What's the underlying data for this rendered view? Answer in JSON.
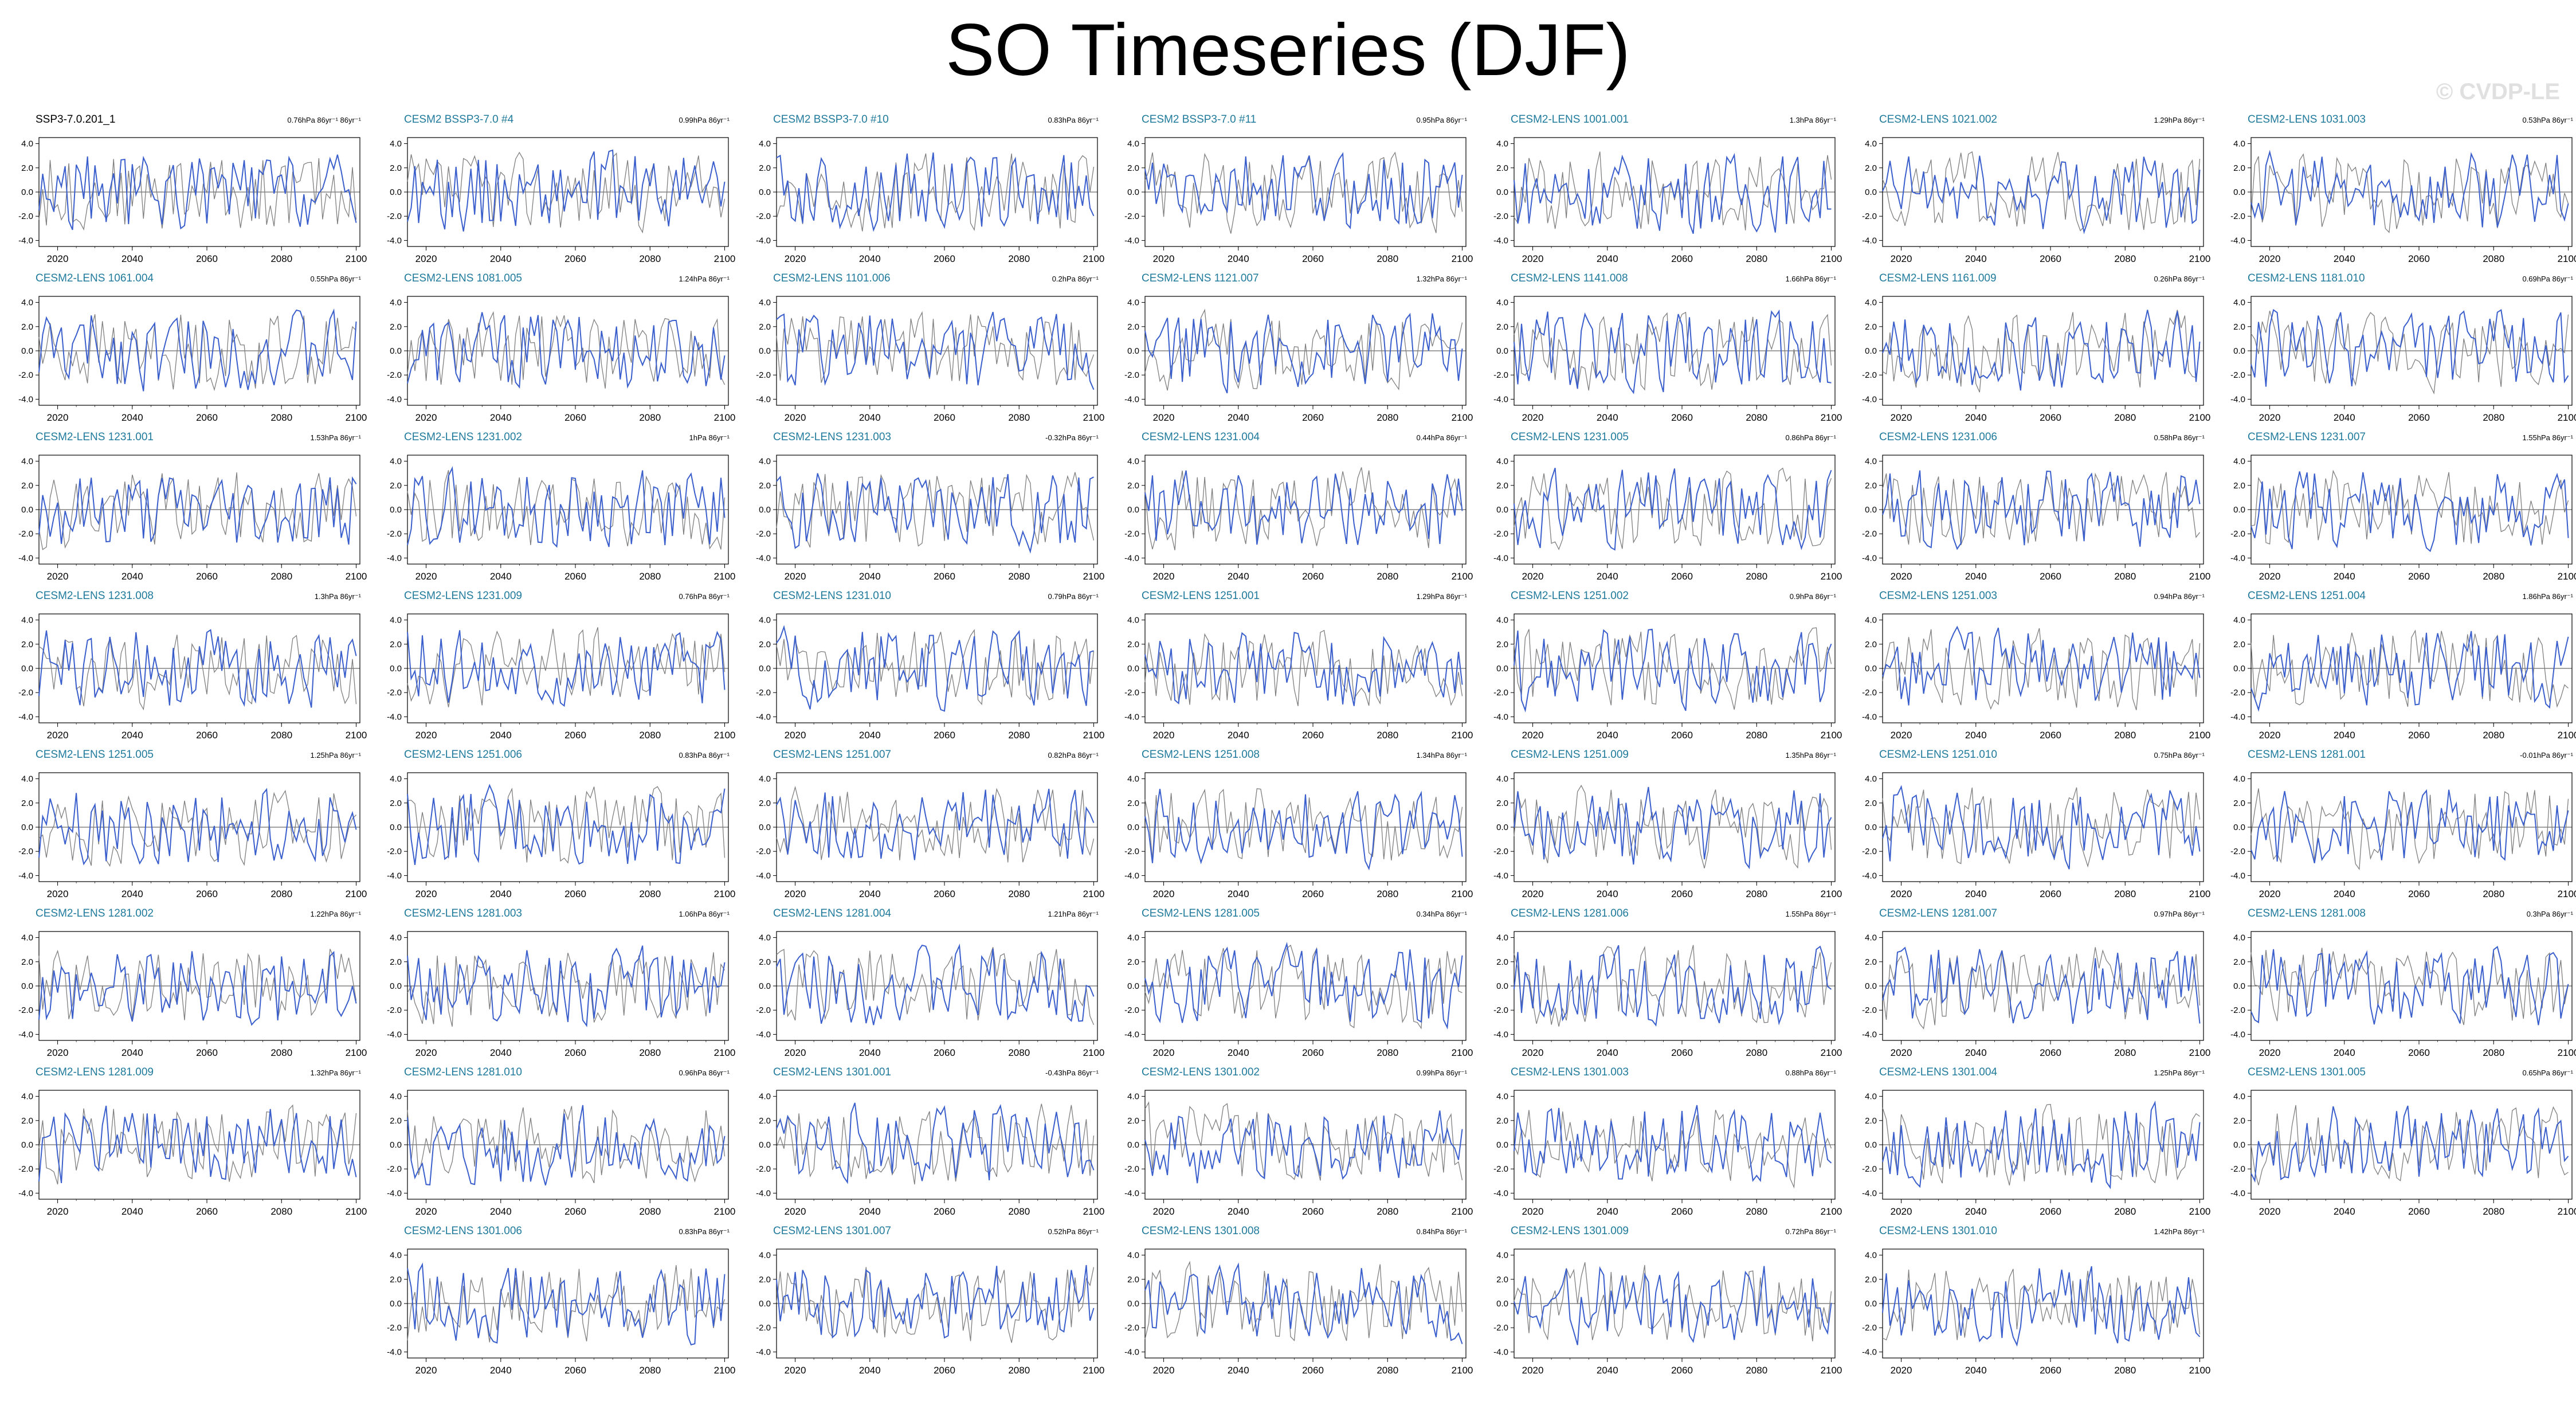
{
  "title": "SO Timeseries (DJF)",
  "watermark": "© CVDP-LE",
  "colors": {
    "model_line": "#3a5fcd",
    "obs_line": "#7f7f7f",
    "title_text": "#1f7a9c",
    "zero_line": "#000000"
  },
  "chart_data": {
    "type": "line",
    "x_ticks": [
      2020,
      2040,
      2060,
      2080,
      2100
    ],
    "y_ticks": [
      "4.0",
      "2.0",
      "0.0",
      "-2.0",
      "-4.0"
    ],
    "xlim": [
      2015,
      2101
    ],
    "ylim": [
      -4.5,
      4.5
    ],
    "series_colors": [
      "blue",
      "gray"
    ],
    "panels": [
      {
        "title": "SSP3-7.0.201_1",
        "trend": "0.76hPa 86yr⁻¹ 86yr⁻¹",
        "seed": 11
      },
      {
        "title": "CESM2 BSSP3-7.0 #4",
        "trend": "0.99hPa 86yr⁻¹",
        "seed": 12
      },
      {
        "title": "CESM2 BSSP3-7.0 #10",
        "trend": "0.83hPa 86yr⁻¹",
        "seed": 13
      },
      {
        "title": "CESM2 BSSP3-7.0 #11",
        "trend": "0.95hPa 86yr⁻¹",
        "seed": 14
      },
      {
        "title": "CESM2-LENS 1001.001",
        "trend": "1.3hPa 86yr⁻¹",
        "seed": 15
      },
      {
        "title": "CESM2-LENS 1021.002",
        "trend": "1.29hPa 86yr⁻¹",
        "seed": 16
      },
      {
        "title": "CESM2-LENS 1031.003",
        "trend": "0.53hPa 86yr⁻¹",
        "seed": 17
      },
      {
        "title": "CESM2-LENS 1061.004",
        "trend": "0.55hPa 86yr⁻¹",
        "seed": 18
      },
      {
        "title": "CESM2-LENS 1081.005",
        "trend": "1.24hPa 86yr⁻¹",
        "seed": 19
      },
      {
        "title": "CESM2-LENS 1101.006",
        "trend": "0.2hPa 86yr⁻¹",
        "seed": 20
      },
      {
        "title": "CESM2-LENS 1121.007",
        "trend": "1.32hPa 86yr⁻¹",
        "seed": 21
      },
      {
        "title": "CESM2-LENS 1141.008",
        "trend": "1.66hPa 86yr⁻¹",
        "seed": 22
      },
      {
        "title": "CESM2-LENS 1161.009",
        "trend": "0.26hPa 86yr⁻¹",
        "seed": 23
      },
      {
        "title": "CESM2-LENS 1181.010",
        "trend": "0.69hPa 86yr⁻¹",
        "seed": 24
      },
      {
        "title": "CESM2-LENS 1231.001",
        "trend": "1.53hPa 86yr⁻¹",
        "seed": 25
      },
      {
        "title": "CESM2-LENS 1231.002",
        "trend": "1hPa 86yr⁻¹",
        "seed": 26
      },
      {
        "title": "CESM2-LENS 1231.003",
        "trend": "-0.32hPa 86yr⁻¹",
        "seed": 27
      },
      {
        "title": "CESM2-LENS 1231.004",
        "trend": "0.44hPa 86yr⁻¹",
        "seed": 28
      },
      {
        "title": "CESM2-LENS 1231.005",
        "trend": "0.86hPa 86yr⁻¹",
        "seed": 29
      },
      {
        "title": "CESM2-LENS 1231.006",
        "trend": "0.58hPa 86yr⁻¹",
        "seed": 30
      },
      {
        "title": "CESM2-LENS 1231.007",
        "trend": "1.55hPa 86yr⁻¹",
        "seed": 31
      },
      {
        "title": "CESM2-LENS 1231.008",
        "trend": "1.3hPa 86yr⁻¹",
        "seed": 32
      },
      {
        "title": "CESM2-LENS 1231.009",
        "trend": "0.76hPa 86yr⁻¹",
        "seed": 33
      },
      {
        "title": "CESM2-LENS 1231.010",
        "trend": "0.79hPa 86yr⁻¹",
        "seed": 34
      },
      {
        "title": "CESM2-LENS 1251.001",
        "trend": "1.29hPa 86yr⁻¹",
        "seed": 35
      },
      {
        "title": "CESM2-LENS 1251.002",
        "trend": "0.9hPa 86yr⁻¹",
        "seed": 36
      },
      {
        "title": "CESM2-LENS 1251.003",
        "trend": "0.94hPa 86yr⁻¹",
        "seed": 37
      },
      {
        "title": "CESM2-LENS 1251.004",
        "trend": "1.86hPa 86yr⁻¹",
        "seed": 38
      },
      {
        "title": "CESM2-LENS 1251.005",
        "trend": "1.25hPa 86yr⁻¹",
        "seed": 39
      },
      {
        "title": "CESM2-LENS 1251.006",
        "trend": "0.83hPa 86yr⁻¹",
        "seed": 40
      },
      {
        "title": "CESM2-LENS 1251.007",
        "trend": "0.82hPa 86yr⁻¹",
        "seed": 41
      },
      {
        "title": "CESM2-LENS 1251.008",
        "trend": "1.34hPa 86yr⁻¹",
        "seed": 42
      },
      {
        "title": "CESM2-LENS 1251.009",
        "trend": "1.35hPa 86yr⁻¹",
        "seed": 43
      },
      {
        "title": "CESM2-LENS 1251.010",
        "trend": "0.75hPa 86yr⁻¹",
        "seed": 44
      },
      {
        "title": "CESM2-LENS 1281.001",
        "trend": "-0.01hPa 86yr⁻¹",
        "seed": 45
      },
      {
        "title": "CESM2-LENS 1281.002",
        "trend": "1.22hPa 86yr⁻¹",
        "seed": 46
      },
      {
        "title": "CESM2-LENS 1281.003",
        "trend": "1.06hPa 86yr⁻¹",
        "seed": 47
      },
      {
        "title": "CESM2-LENS 1281.004",
        "trend": "1.21hPa 86yr⁻¹",
        "seed": 48
      },
      {
        "title": "CESM2-LENS 1281.005",
        "trend": "0.34hPa 86yr⁻¹",
        "seed": 49
      },
      {
        "title": "CESM2-LENS 1281.006",
        "trend": "1.55hPa 86yr⁻¹",
        "seed": 50
      },
      {
        "title": "CESM2-LENS 1281.007",
        "trend": "0.97hPa 86yr⁻¹",
        "seed": 51
      },
      {
        "title": "CESM2-LENS 1281.008",
        "trend": "0.3hPa 86yr⁻¹",
        "seed": 52
      },
      {
        "title": "CESM2-LENS 1281.009",
        "trend": "1.32hPa 86yr⁻¹",
        "seed": 53
      },
      {
        "title": "CESM2-LENS 1281.010",
        "trend": "0.96hPa 86yr⁻¹",
        "seed": 54
      },
      {
        "title": "CESM2-LENS 1301.001",
        "trend": "-0.43hPa 86yr⁻¹",
        "seed": 55
      },
      {
        "title": "CESM2-LENS 1301.002",
        "trend": "0.99hPa 86yr⁻¹",
        "seed": 56
      },
      {
        "title": "CESM2-LENS 1301.003",
        "trend": "0.88hPa 86yr⁻¹",
        "seed": 57
      },
      {
        "title": "CESM2-LENS 1301.004",
        "trend": "1.25hPa 86yr⁻¹",
        "seed": 58
      },
      {
        "title": "CESM2-LENS 1301.005",
        "trend": "0.65hPa 86yr⁻¹",
        "seed": 59
      },
      {
        "title": "CESM2-LENS 1301.006",
        "trend": "0.83hPa 86yr⁻¹",
        "seed": 60
      },
      {
        "title": "CESM2-LENS 1301.007",
        "trend": "0.52hPa 86yr⁻¹",
        "seed": 61
      },
      {
        "title": "CESM2-LENS 1301.008",
        "trend": "0.84hPa 86yr⁻¹",
        "seed": 62
      },
      {
        "title": "CESM2-LENS 1301.009",
        "trend": "0.72hPa 86yr⁻¹",
        "seed": 63
      },
      {
        "title": "CESM2-LENS 1301.010",
        "trend": "1.42hPa 86yr⁻¹",
        "seed": 64
      }
    ]
  }
}
